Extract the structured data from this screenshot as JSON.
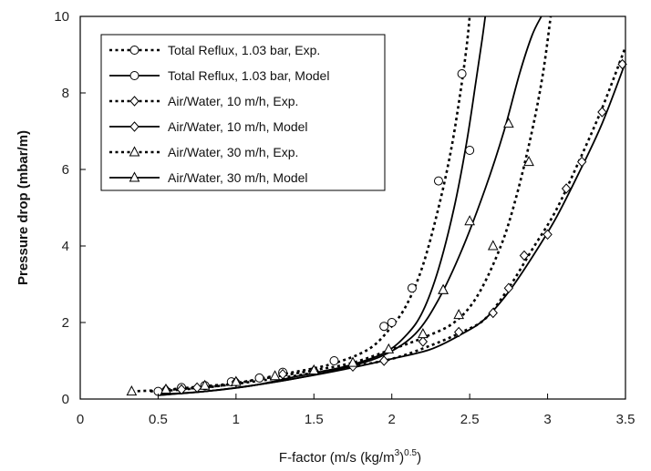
{
  "chart_data": {
    "type": "line",
    "xlabel": "F-factor (m/s(kg/m3)0.5)",
    "xlabel_parts": {
      "main": "F-factor (m/s (kg/m",
      "sup1": "3",
      "mid": ")",
      "sup2": "0.5",
      "end": ")"
    },
    "ylabel": "Pressure drop (mbar/m)",
    "xlim": [
      0,
      3.5
    ],
    "ylim": [
      0,
      10
    ],
    "xticks": [
      0,
      0.5,
      1,
      1.5,
      2,
      2.5,
      3,
      3.5
    ],
    "xtick_labels": [
      "0",
      "0.5",
      "1",
      "1.5",
      "2",
      "2.5",
      "3",
      "3.5"
    ],
    "yticks": [
      0,
      2,
      4,
      6,
      8,
      10
    ],
    "ytick_labels": [
      "0",
      "2",
      "4",
      "6",
      "8",
      "10"
    ],
    "grid": false,
    "legend_position": "top-left",
    "series": [
      {
        "name": "Total Reflux, 1.03 bar, Exp.",
        "marker": "circle",
        "line": "dotted",
        "x": [
          0.5,
          0.65,
          0.8,
          0.97,
          1.15,
          1.3,
          1.63,
          1.95,
          2.0,
          2.13,
          2.3,
          2.45,
          2.5
        ],
        "y": [
          0.2,
          0.3,
          0.35,
          0.45,
          0.55,
          0.7,
          1.0,
          1.9,
          2.0,
          2.9,
          5.7,
          8.5,
          6.5
        ],
        "curve_x": [
          0.45,
          0.7,
          1.0,
          1.3,
          1.6,
          1.85,
          2.0,
          2.1,
          2.2,
          2.3,
          2.38,
          2.44,
          2.48,
          2.5
        ],
        "curve_y": [
          0.2,
          0.3,
          0.42,
          0.65,
          0.9,
          1.3,
          1.9,
          2.5,
          3.5,
          5.0,
          6.5,
          8.0,
          9.2,
          10
        ]
      },
      {
        "name": "Total Reflux, 1.03 bar, Model",
        "marker": "circle",
        "line": "solid",
        "x": [],
        "y": [],
        "curve_x": [
          0.5,
          0.8,
          1.1,
          1.4,
          1.7,
          1.95,
          2.1,
          2.2,
          2.3,
          2.4,
          2.48,
          2.54,
          2.58,
          2.6
        ],
        "curve_y": [
          0.12,
          0.2,
          0.35,
          0.6,
          0.85,
          1.2,
          1.7,
          2.3,
          3.4,
          5.0,
          6.7,
          8.3,
          9.4,
          10
        ]
      },
      {
        "name": "Air/Water, 10 m/h, Exp.",
        "marker": "diamond",
        "line": "dotted",
        "x": [
          0.55,
          0.65,
          0.75,
          1.0,
          1.3,
          1.5,
          1.75,
          1.95,
          2.2,
          2.43,
          2.65,
          2.75,
          2.85,
          3.0,
          3.12,
          3.22,
          3.35,
          3.48
        ],
        "y": [
          0.25,
          0.25,
          0.3,
          0.45,
          0.65,
          0.75,
          0.85,
          1.0,
          1.5,
          1.75,
          2.25,
          2.9,
          3.75,
          4.3,
          5.5,
          6.2,
          7.5,
          8.75
        ],
        "curve_x": [
          0.5,
          0.8,
          1.1,
          1.4,
          1.7,
          2.0,
          2.25,
          2.45,
          2.6,
          2.75,
          2.9,
          3.05,
          3.2,
          3.35,
          3.5
        ],
        "curve_y": [
          0.2,
          0.3,
          0.45,
          0.62,
          0.82,
          1.05,
          1.4,
          1.75,
          2.1,
          2.9,
          3.9,
          4.9,
          6.2,
          7.6,
          9.2
        ]
      },
      {
        "name": "Air/Water, 10 m/h, Model",
        "marker": "diamond",
        "line": "solid",
        "x": [],
        "y": [],
        "curve_x": [
          0.5,
          0.8,
          1.1,
          1.4,
          1.7,
          2.0,
          2.25,
          2.45,
          2.6,
          2.75,
          2.9,
          3.05,
          3.2,
          3.35,
          3.5
        ],
        "curve_y": [
          0.1,
          0.2,
          0.35,
          0.55,
          0.78,
          1.05,
          1.3,
          1.7,
          2.1,
          2.8,
          3.7,
          4.7,
          5.9,
          7.2,
          8.8
        ]
      },
      {
        "name": "Air/Water, 30 m/h, Exp.",
        "marker": "triangle",
        "line": "dotted",
        "x": [
          0.33,
          0.55,
          0.8,
          1.0,
          1.25,
          1.5,
          1.75,
          1.98,
          2.2,
          2.33,
          2.43,
          2.65,
          2.88
        ],
        "y": [
          0.2,
          0.25,
          0.35,
          0.45,
          0.6,
          0.75,
          0.95,
          1.3,
          1.7,
          2.85,
          2.2,
          4.0,
          6.2
        ],
        "curve_x": [
          0.33,
          0.6,
          0.9,
          1.2,
          1.5,
          1.75,
          2.0,
          2.2,
          2.4,
          2.55,
          2.7,
          2.8,
          2.9,
          2.97,
          3.02
        ],
        "curve_y": [
          0.2,
          0.25,
          0.35,
          0.55,
          0.75,
          0.95,
          1.3,
          1.6,
          2.0,
          2.7,
          4.0,
          5.3,
          7.0,
          8.5,
          10
        ]
      },
      {
        "name": "Air/Water, 30 m/h, Model",
        "marker": "triangle",
        "line": "solid",
        "x": [
          2.33,
          2.5,
          2.75
        ],
        "y": [
          2.85,
          4.65,
          7.2
        ],
        "curve_x": [
          0.5,
          0.8,
          1.1,
          1.4,
          1.7,
          1.95,
          2.15,
          2.3,
          2.45,
          2.6,
          2.72,
          2.82,
          2.9,
          2.96
        ],
        "curve_y": [
          0.1,
          0.2,
          0.35,
          0.55,
          0.82,
          1.15,
          1.7,
          2.6,
          3.9,
          5.5,
          7.0,
          8.5,
          9.5,
          10
        ]
      }
    ]
  }
}
